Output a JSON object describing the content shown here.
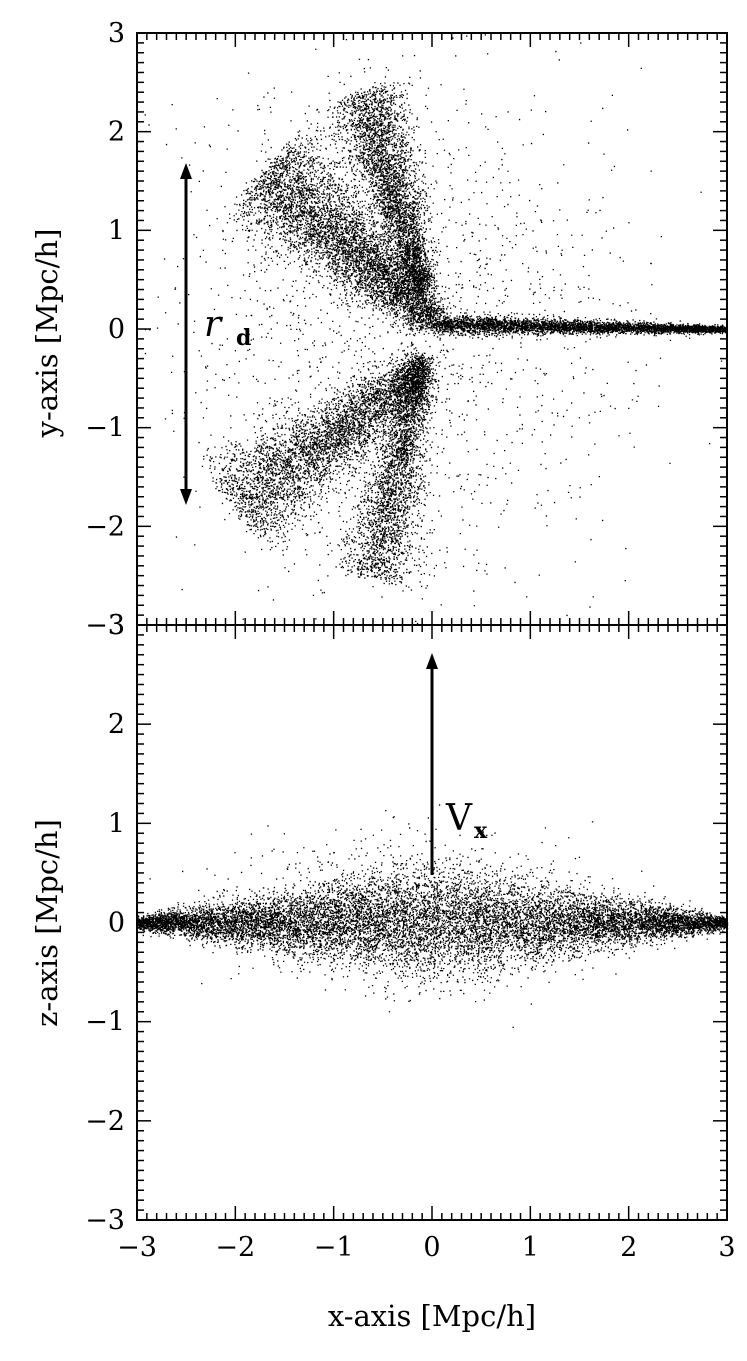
{
  "chart_data": [
    {
      "type": "scatter",
      "panel": "top",
      "xlabel": "",
      "ylabel": "y-axis [Mpc/h]",
      "xlim": [
        -3,
        3
      ],
      "ylim": [
        -3,
        3
      ],
      "xticks": [
        "-3",
        "-2",
        "-1",
        "0",
        "1",
        "2",
        "3"
      ],
      "yticks": [
        "-3",
        "-2",
        "-1",
        "0",
        "1",
        "2",
        "3"
      ],
      "show_x_tick_labels": false,
      "grid": false,
      "structures": [
        {
          "kind": "streak",
          "from": [
            -1.7,
            1.6
          ],
          "to": [
            0.0,
            0.1
          ],
          "sigma": 0.3,
          "count": 5200
        },
        {
          "kind": "streak",
          "from": [
            -0.7,
            2.4
          ],
          "to": [
            -0.1,
            0.4
          ],
          "sigma": 0.2,
          "count": 3600
        },
        {
          "kind": "streak",
          "from": [
            0.0,
            0.05
          ],
          "to": [
            3.0,
            0.0
          ],
          "sigma": 0.05,
          "count": 4200
        },
        {
          "kind": "streak",
          "from": [
            -2.0,
            -1.8
          ],
          "to": [
            -0.1,
            -0.4
          ],
          "sigma": 0.28,
          "count": 4200
        },
        {
          "kind": "streak",
          "from": [
            -0.6,
            -2.5
          ],
          "to": [
            -0.1,
            -0.3
          ],
          "sigma": 0.2,
          "count": 3000
        },
        {
          "kind": "halo",
          "center": [
            -0.3,
            0.0
          ],
          "spread": [
            1.1,
            1.3
          ],
          "count": 1800
        }
      ],
      "annotations": [
        {
          "label": "r",
          "subscript": "d",
          "arrow": {
            "from": [
              -2.5,
              -1.7
            ],
            "to": [
              -2.5,
              1.65
            ],
            "double_headed": true
          },
          "text_at": [
            -2.3,
            0.05
          ]
        }
      ]
    },
    {
      "type": "scatter",
      "panel": "bottom",
      "xlabel": "x-axis [Mpc/h]",
      "ylabel": "z-axis [Mpc/h]",
      "xlim": [
        -3,
        3
      ],
      "ylim": [
        -3,
        3
      ],
      "xticks": [
        "-3",
        "-2",
        "-1",
        "0",
        "1",
        "2",
        "3"
      ],
      "yticks": [
        "-3",
        "-2",
        "-1",
        "0",
        "1",
        "2",
        "3"
      ],
      "show_x_tick_labels": true,
      "grid": false,
      "structures": [
        {
          "kind": "sheet",
          "x_range": [
            -3.0,
            3.0
          ],
          "y_center": 0.0,
          "sigma_at_center": 0.28,
          "sigma_at_edge": 0.03,
          "count": 12000
        },
        {
          "kind": "halo",
          "center": [
            -0.2,
            0.1
          ],
          "spread": [
            0.9,
            0.35
          ],
          "count": 1200
        }
      ],
      "annotations": [
        {
          "label": "V",
          "subscript": "x",
          "arrow": {
            "from": [
              0.0,
              0.4
            ],
            "to": [
              0.0,
              2.5
            ],
            "double_headed": false
          },
          "text_at": [
            0.12,
            1.0
          ]
        }
      ]
    }
  ]
}
